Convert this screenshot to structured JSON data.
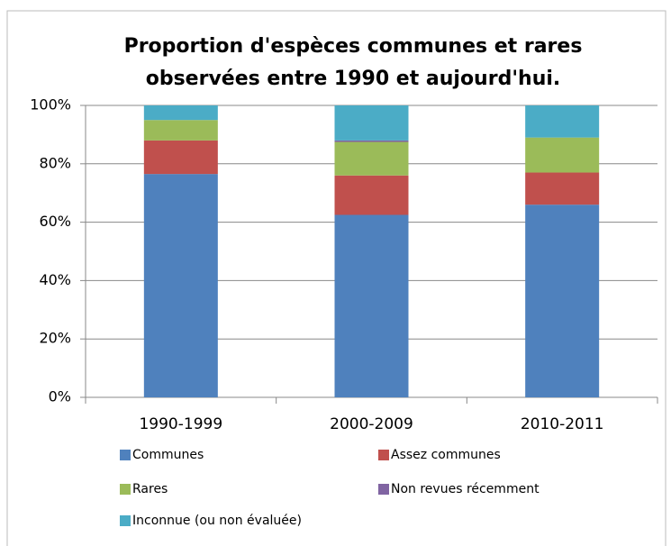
{
  "chart_data": {
    "type": "stacked-bar",
    "title": [
      "Proportion d'espèces communes et rares",
      "observées entre 1990 et aujourd'hui."
    ],
    "categories": [
      "1990-1999",
      "2000-2009",
      "2010-2011"
    ],
    "series": [
      {
        "name": "Communes",
        "color": "#4f81bd",
        "values": [
          76.5,
          62.5,
          66
        ]
      },
      {
        "name": "Assez communes",
        "color": "#c0504d",
        "values": [
          11.5,
          13.5,
          11
        ]
      },
      {
        "name": "Rares",
        "color": "#9bbb59",
        "values": [
          7,
          11.5,
          12
        ]
      },
      {
        "name": "Non revues récemment",
        "color": "#8064a2",
        "values": [
          0,
          0.5,
          0
        ]
      },
      {
        "name": "Inconnue (ou non évaluée)",
        "color": "#4bacc6",
        "values": [
          5,
          12,
          11
        ]
      }
    ],
    "ylim": [
      0,
      100
    ],
    "yticks": [
      {
        "value": 0,
        "label": "0%"
      },
      {
        "value": 20,
        "label": "20%"
      },
      {
        "value": 40,
        "label": "40%"
      },
      {
        "value": 60,
        "label": "60%"
      },
      {
        "value": 80,
        "label": "80%"
      },
      {
        "value": 100,
        "label": "100%"
      }
    ],
    "grid": true
  }
}
